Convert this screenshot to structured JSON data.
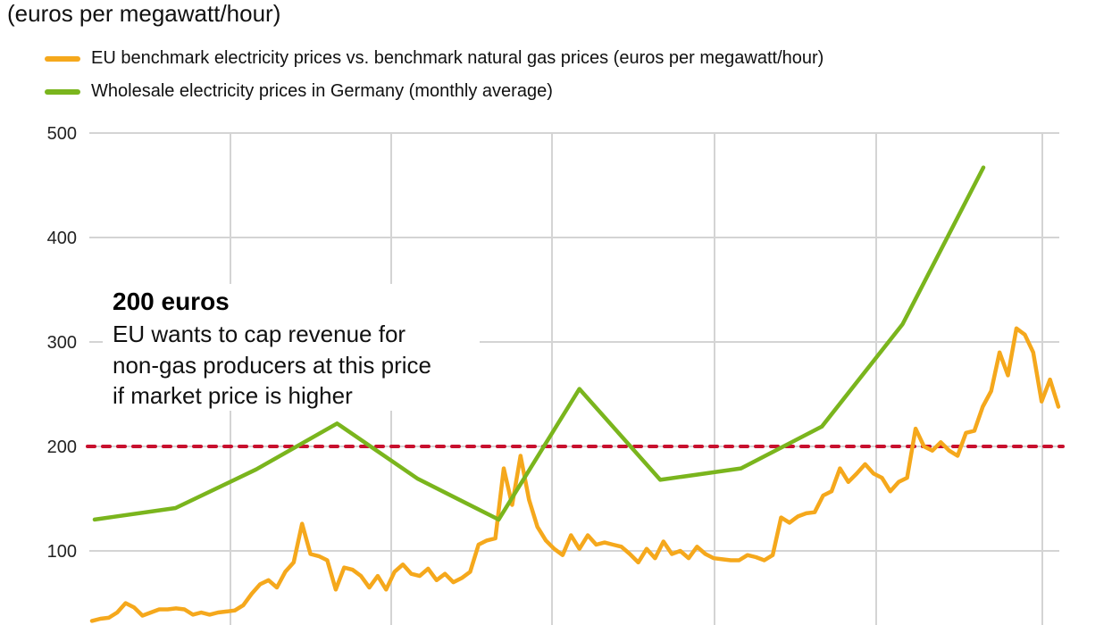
{
  "chart_data": {
    "type": "line",
    "subtitle": "(euros per megawatt/hour)",
    "ylim": [
      0,
      500
    ],
    "yticks": [
      "100",
      "200",
      "300",
      "400",
      "500"
    ],
    "grid": true,
    "legend_position": "top-left",
    "series": [
      {
        "name": "EU benchmark electricity prices vs. benchmark natural gas prices (euros per megawatt/hour)",
        "color": "#f5a81c",
        "values": [
          33,
          35,
          36,
          41,
          50,
          46,
          38,
          41,
          44,
          44,
          45,
          44,
          39,
          41,
          39,
          41,
          42,
          43,
          48,
          59,
          68,
          72,
          65,
          80,
          89,
          126,
          97,
          95,
          91,
          63,
          84,
          82,
          76,
          65,
          76,
          63,
          80,
          87,
          78,
          76,
          83,
          72,
          78,
          70,
          74,
          80,
          106,
          110,
          112,
          179,
          144,
          191,
          149,
          123,
          110,
          102,
          96,
          115,
          102,
          115,
          106,
          108,
          106,
          104,
          97,
          89,
          102,
          93,
          109,
          97,
          100,
          93,
          104,
          97,
          93,
          92,
          91,
          91,
          96,
          94,
          91,
          96,
          132,
          127,
          133,
          136,
          137,
          153,
          157,
          179,
          166,
          174,
          183,
          174,
          170,
          157,
          166,
          170,
          217,
          200,
          196,
          204,
          196,
          191,
          213,
          215,
          238,
          253,
          290,
          268,
          313,
          307,
          290,
          243,
          264,
          238
        ]
      },
      {
        "name": "Wholesale electricity prices in Germany (monthly average)",
        "color": "#7ab51d",
        "values": [
          130,
          141,
          178,
          222,
          169,
          130,
          255,
          168,
          179,
          219,
          317,
          467
        ]
      }
    ],
    "reference_line": {
      "value": 200,
      "color": "#c8102e",
      "style": "dashed"
    },
    "annotation": {
      "title": "200 euros",
      "lines": [
        "EU wants to cap revenue for",
        "non-gas producers at this price",
        "if market price is higher"
      ]
    }
  }
}
